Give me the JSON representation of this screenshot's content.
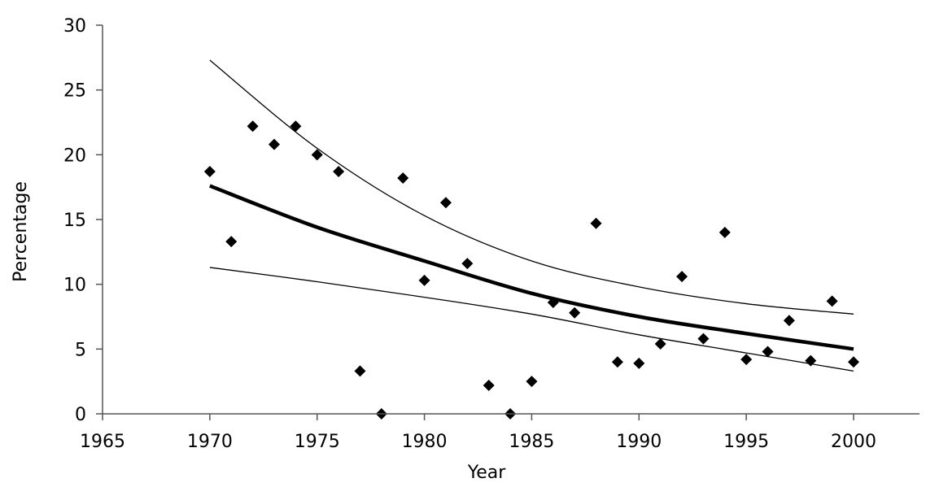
{
  "chart_data": {
    "type": "scatter",
    "title": "",
    "xlabel": "Year",
    "ylabel": "Percentage",
    "xlim": [
      1965,
      2000
    ],
    "ylim": [
      0,
      30
    ],
    "xticks": [
      1965,
      1970,
      1975,
      1980,
      1985,
      1990,
      1995,
      2000
    ],
    "yticks": [
      0,
      5,
      10,
      15,
      20,
      25,
      30
    ],
    "grid": false,
    "legend": "none",
    "points": [
      {
        "x": 1970,
        "y": 18.7
      },
      {
        "x": 1971,
        "y": 13.3
      },
      {
        "x": 1972,
        "y": 22.2
      },
      {
        "x": 1973,
        "y": 20.8
      },
      {
        "x": 1974,
        "y": 22.2
      },
      {
        "x": 1975,
        "y": 20.0
      },
      {
        "x": 1976,
        "y": 18.7
      },
      {
        "x": 1977,
        "y": 3.3
      },
      {
        "x": 1978,
        "y": 0.0
      },
      {
        "x": 1979,
        "y": 18.2
      },
      {
        "x": 1980,
        "y": 10.3
      },
      {
        "x": 1981,
        "y": 16.3
      },
      {
        "x": 1982,
        "y": 11.6
      },
      {
        "x": 1983,
        "y": 2.2
      },
      {
        "x": 1984,
        "y": 0.0
      },
      {
        "x": 1985,
        "y": 2.5
      },
      {
        "x": 1986,
        "y": 8.6
      },
      {
        "x": 1987,
        "y": 7.8
      },
      {
        "x": 1988,
        "y": 14.7
      },
      {
        "x": 1989,
        "y": 4.0
      },
      {
        "x": 1990,
        "y": 3.9
      },
      {
        "x": 1991,
        "y": 5.4
      },
      {
        "x": 1992,
        "y": 10.6
      },
      {
        "x": 1993,
        "y": 5.8
      },
      {
        "x": 1994,
        "y": 14.0
      },
      {
        "x": 1995,
        "y": 4.2
      },
      {
        "x": 1996,
        "y": 4.8
      },
      {
        "x": 1997,
        "y": 7.2
      },
      {
        "x": 1998,
        "y": 4.1
      },
      {
        "x": 1999,
        "y": 8.7
      },
      {
        "x": 2000,
        "y": 4.0
      }
    ],
    "curves": [
      {
        "role": "trend",
        "x": [
          1970,
          1975,
          1980,
          1985,
          1990,
          1995,
          2000
        ],
        "y": [
          17.6,
          14.4,
          11.8,
          9.3,
          7.5,
          6.2,
          5.0
        ]
      },
      {
        "role": "upper-bound",
        "x": [
          1970,
          1975,
          1980,
          1985,
          1990,
          1995,
          2000
        ],
        "y": [
          27.3,
          20.5,
          15.3,
          11.8,
          9.8,
          8.5,
          7.7
        ]
      },
      {
        "role": "lower-bound",
        "x": [
          1970,
          1975,
          1980,
          1985,
          1990,
          1995,
          2000
        ],
        "y": [
          11.3,
          10.2,
          9.0,
          7.7,
          6.1,
          4.7,
          3.3
        ]
      }
    ],
    "colors": {
      "points": "#000000",
      "trend": "#000000",
      "bounds": "#000000",
      "axis": "#555555"
    }
  }
}
